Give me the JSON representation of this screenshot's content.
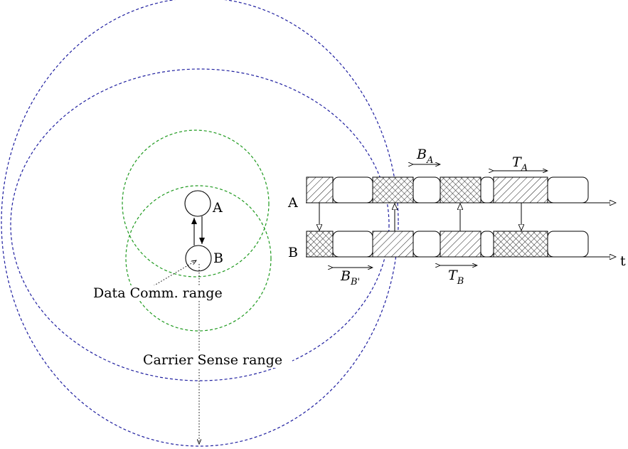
{
  "nodes": {
    "a_label": "A",
    "b_label": "B"
  },
  "ranges": {
    "data_comm": "Data Comm. range",
    "carrier_sense": "Carrier Sense range"
  },
  "timeline": {
    "row_a_label": "A",
    "row_b_label": "B",
    "time_label": "t",
    "backoff_a": {
      "main": "B",
      "sub": "A"
    },
    "backoff_b": {
      "main": "B",
      "sub": "B'"
    },
    "tx_a": {
      "main": "T",
      "sub": "A"
    },
    "tx_b": {
      "main": "T",
      "sub": "B"
    }
  },
  "colors": {
    "carrier_sense_circle": "#1f1fa0",
    "data_comm_circle": "#1f9a1f"
  }
}
